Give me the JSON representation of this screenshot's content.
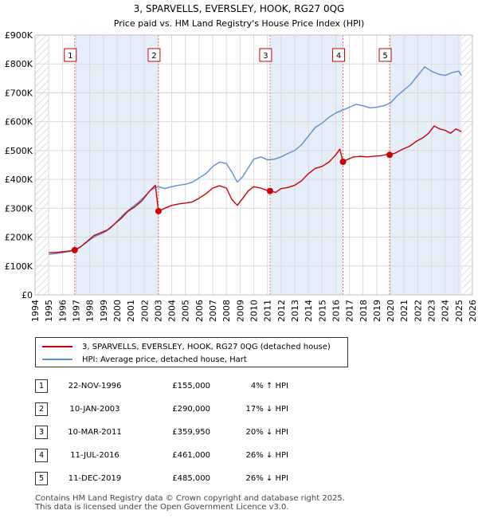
{
  "chart_data": {
    "type": "line",
    "title": "3, SPARVELLS, EVERSLEY, HOOK, RG27 0QG",
    "subtitle": "Price paid vs. HM Land Registry's House Price Index (HPI)",
    "xlabel": "",
    "ylabel": "",
    "xlim": [
      1994,
      2026
    ],
    "ylim": [
      0,
      900000
    ],
    "x_ticks": [
      "1994",
      "1995",
      "1996",
      "1997",
      "1998",
      "1999",
      "2000",
      "2001",
      "2002",
      "2003",
      "2004",
      "2005",
      "2006",
      "2007",
      "2008",
      "2009",
      "2010",
      "2011",
      "2012",
      "2013",
      "2014",
      "2015",
      "2016",
      "2017",
      "2018",
      "2019",
      "2020",
      "2021",
      "2022",
      "2023",
      "2024",
      "2025",
      "2026"
    ],
    "y_ticks": [
      {
        "value": 0,
        "label": "£0"
      },
      {
        "value": 100000,
        "label": "£100K"
      },
      {
        "value": 200000,
        "label": "£200K"
      },
      {
        "value": 300000,
        "label": "£300K"
      },
      {
        "value": 400000,
        "label": "£400K"
      },
      {
        "value": 500000,
        "label": "£500K"
      },
      {
        "value": 600000,
        "label": "£600K"
      },
      {
        "value": 700000,
        "label": "£700K"
      },
      {
        "value": 800000,
        "label": "£800K"
      },
      {
        "value": 900000,
        "label": "£900K"
      }
    ],
    "grid": true,
    "shaded_periods": [
      [
        1996.9,
        2003.03
      ],
      [
        2011.19,
        2016.53
      ],
      [
        2019.94,
        2025.2
      ]
    ],
    "hatched_before": 1995.0,
    "hatched_after": 2025.2,
    "series": [
      {
        "name": "3, SPARVELLS, EVERSLEY, HOOK, RG27 0QG (detached house)",
        "color": "#cc0000",
        "x": [
          1995.0,
          1995.5,
          1996.0,
          1996.5,
          1996.9,
          1997.3,
          1997.8,
          1998.3,
          1998.8,
          1999.3,
          1999.8,
          2000.3,
          2000.8,
          2001.3,
          2001.8,
          2002.3,
          2002.8,
          2003.03,
          2003.5,
          2004.0,
          2004.5,
          2005.0,
          2005.5,
          2006.0,
          2006.5,
          2007.0,
          2007.5,
          2008.0,
          2008.4,
          2008.8,
          2009.2,
          2009.6,
          2010.0,
          2010.5,
          2011.0,
          2011.19,
          2011.6,
          2012.0,
          2012.5,
          2013.0,
          2013.5,
          2014.0,
          2014.5,
          2015.0,
          2015.5,
          2016.0,
          2016.3,
          2016.53,
          2016.9,
          2017.3,
          2017.8,
          2018.3,
          2018.8,
          2019.3,
          2019.7,
          2019.94,
          2020.4,
          2020.9,
          2021.4,
          2021.9,
          2022.4,
          2022.8,
          2023.2,
          2023.6,
          2024.0,
          2024.4,
          2024.8,
          2025.2
        ],
        "y": [
          146000,
          147000,
          149000,
          152000,
          155000,
          165000,
          185000,
          205000,
          215000,
          225000,
          245000,
          265000,
          290000,
          305000,
          325000,
          355000,
          380000,
          290000,
          300000,
          310000,
          315000,
          318000,
          322000,
          335000,
          350000,
          370000,
          378000,
          370000,
          330000,
          310000,
          335000,
          360000,
          375000,
          370000,
          362000,
          359950,
          355000,
          368000,
          372000,
          380000,
          395000,
          420000,
          438000,
          445000,
          460000,
          485000,
          505000,
          461000,
          470000,
          478000,
          480000,
          478000,
          480000,
          482000,
          486000,
          485000,
          492000,
          505000,
          515000,
          532000,
          545000,
          560000,
          585000,
          575000,
          570000,
          560000,
          575000,
          565000
        ]
      },
      {
        "name": "HPI: Average price, detached house, Hart",
        "color": "#5b8fd4",
        "x": [
          1995.0,
          1995.5,
          1996.0,
          1996.5,
          1997.0,
          1997.5,
          1998.0,
          1998.5,
          1999.0,
          1999.5,
          2000.0,
          2000.5,
          2001.0,
          2001.5,
          2002.0,
          2002.5,
          2003.0,
          2003.5,
          2004.0,
          2004.5,
          2005.0,
          2005.5,
          2006.0,
          2006.5,
          2007.0,
          2007.5,
          2008.0,
          2008.4,
          2008.8,
          2009.2,
          2009.6,
          2010.0,
          2010.5,
          2011.0,
          2011.5,
          2012.0,
          2012.5,
          2013.0,
          2013.5,
          2014.0,
          2014.5,
          2015.0,
          2015.5,
          2016.0,
          2016.5,
          2017.0,
          2017.5,
          2018.0,
          2018.5,
          2019.0,
          2019.5,
          2020.0,
          2020.5,
          2021.0,
          2021.5,
          2022.0,
          2022.5,
          2023.0,
          2023.5,
          2024.0,
          2024.5,
          2025.0,
          2025.2
        ],
        "y": [
          140000,
          143000,
          146000,
          150000,
          158000,
          172000,
          190000,
          205000,
          215000,
          230000,
          255000,
          280000,
          300000,
          318000,
          340000,
          365000,
          375000,
          368000,
          375000,
          380000,
          383000,
          390000,
          405000,
          420000,
          445000,
          460000,
          455000,
          425000,
          390000,
          410000,
          440000,
          470000,
          478000,
          468000,
          470000,
          478000,
          490000,
          500000,
          520000,
          550000,
          580000,
          595000,
          615000,
          630000,
          640000,
          650000,
          660000,
          655000,
          648000,
          650000,
          655000,
          665000,
          690000,
          710000,
          730000,
          760000,
          790000,
          775000,
          765000,
          760000,
          770000,
          775000,
          760000
        ]
      }
    ],
    "sales": [
      {
        "label": "1",
        "x": 1996.9,
        "y": 155000
      },
      {
        "label": "2",
        "x": 2003.03,
        "y": 290000
      },
      {
        "label": "3",
        "x": 2011.19,
        "y": 359950
      },
      {
        "label": "4",
        "x": 2016.53,
        "y": 461000
      },
      {
        "label": "5",
        "x": 2019.94,
        "y": 485000
      }
    ]
  },
  "legend": {
    "property": "3, SPARVELLS, EVERSLEY, HOOK, RG27 0QG (detached house)",
    "hpi": "HPI: Average price, detached house, Hart"
  },
  "table": [
    {
      "num": "1",
      "date": "22-NOV-1996",
      "price": "£155,000",
      "hpi": "4% ↑ HPI"
    },
    {
      "num": "2",
      "date": "10-JAN-2003",
      "price": "£290,000",
      "hpi": "17% ↓ HPI"
    },
    {
      "num": "3",
      "date": "10-MAR-2011",
      "price": "£359,950",
      "hpi": "20% ↓ HPI"
    },
    {
      "num": "4",
      "date": "11-JUL-2016",
      "price": "£461,000",
      "hpi": "26% ↓ HPI"
    },
    {
      "num": "5",
      "date": "11-DEC-2019",
      "price": "£485,000",
      "hpi": "26% ↓ HPI"
    }
  ],
  "footer": {
    "line1": "Contains HM Land Registry data © Crown copyright and database right 2025.",
    "line2": "This data is licensed under the Open Government Licence v3.0."
  }
}
